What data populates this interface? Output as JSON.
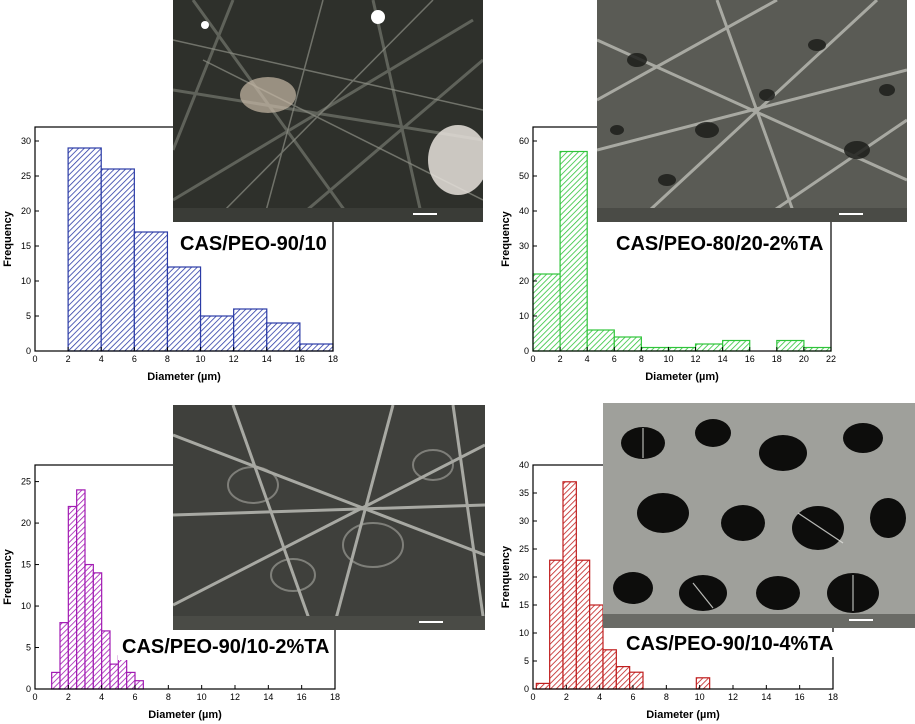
{
  "chart_data": [
    {
      "type": "bar",
      "label": "CAS/PEO-90/10",
      "xlabel": "Diameter (µm)",
      "ylabel": "Frequency",
      "xlim": [
        0,
        18
      ],
      "ylim": [
        0,
        32
      ],
      "xticks": [
        0,
        2,
        4,
        6,
        8,
        10,
        12,
        14,
        16,
        18
      ],
      "yticks": [
        0,
        5,
        10,
        15,
        20,
        25,
        30
      ],
      "bin_width": 2,
      "bin_starts": [
        2,
        4,
        6,
        8,
        10,
        12,
        14,
        16
      ],
      "values": [
        29,
        26,
        17,
        12,
        5,
        6,
        4,
        1
      ],
      "color": "#2b3ba6"
    },
    {
      "type": "bar",
      "label": "CAS/PEO-80/20-2%TA",
      "xlabel": "Diameter (µm)",
      "ylabel": "Frequency",
      "xlim": [
        0,
        22
      ],
      "ylim": [
        0,
        64
      ],
      "xticks": [
        0,
        2,
        4,
        6,
        8,
        10,
        12,
        14,
        16,
        18,
        20,
        22
      ],
      "yticks": [
        0,
        10,
        20,
        30,
        40,
        50,
        60
      ],
      "bin_width": 2,
      "bin_starts": [
        0,
        2,
        4,
        6,
        8,
        10,
        12,
        14,
        18,
        20
      ],
      "values": [
        22,
        57,
        6,
        4,
        1,
        1,
        2,
        3,
        3,
        1
      ],
      "color": "#2fc43a"
    },
    {
      "type": "bar",
      "label": "CAS/PEO-90/10-2%TA",
      "xlabel": "Diameter (µm)",
      "ylabel": "Frequency",
      "xlim": [
        0,
        18
      ],
      "ylim": [
        0,
        27
      ],
      "xticks": [
        0,
        2,
        4,
        6,
        8,
        10,
        12,
        14,
        16,
        18
      ],
      "yticks": [
        0,
        5,
        10,
        15,
        20,
        25
      ],
      "bin_width": 0.5,
      "bin_starts": [
        1,
        1.5,
        2,
        2.5,
        3,
        3.5,
        4,
        4.5,
        5,
        5.5,
        6
      ],
      "values": [
        2,
        8,
        22,
        24,
        15,
        14,
        7,
        3,
        4,
        2,
        1
      ],
      "color": "#a21bb3"
    },
    {
      "type": "bar",
      "label": "CAS/PEO-90/10-4%TA",
      "xlabel": "Diameter (µm)",
      "ylabel": "Frenquency",
      "xlim": [
        0,
        18
      ],
      "ylim": [
        0,
        40
      ],
      "xticks": [
        0,
        2,
        4,
        6,
        8,
        10,
        12,
        14,
        16,
        18
      ],
      "yticks": [
        0,
        5,
        10,
        15,
        20,
        25,
        30,
        35,
        40
      ],
      "bin_width": 0.8,
      "bin_starts": [
        0.2,
        1,
        1.8,
        2.6,
        3.4,
        4.2,
        5,
        5.8,
        9,
        9.8
      ],
      "values": [
        1,
        23,
        37,
        23,
        15,
        7,
        4,
        3,
        0,
        2
      ],
      "color": "#c01e1e"
    }
  ]
}
